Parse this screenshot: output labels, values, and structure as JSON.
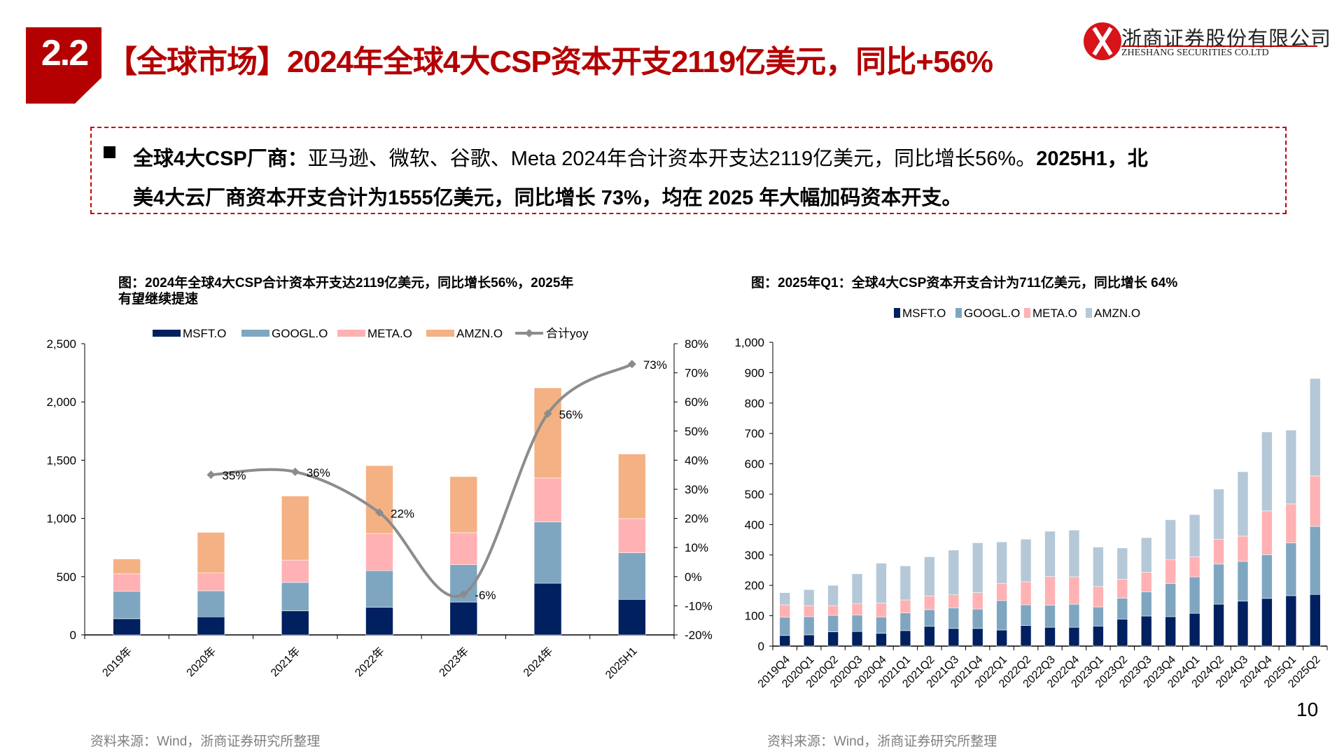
{
  "header": {
    "section_number": "2.2",
    "title": "【全球市场】2024年全球4大CSP资本开支2119亿美元，同比+56%",
    "brand_color": "#b40000"
  },
  "logo": {
    "name_cn": "浙商证券股份有限公司",
    "name_en": "ZHESHANG SECURITIES CO.LTD"
  },
  "summary": {
    "lead": "全球4大CSP厂商：",
    "text1": "亚马逊、微软、谷歌、Meta 2024年合计资本开支达2119亿美元，同比增长56%。",
    "bold1": "2025H1，北",
    "line2": "美4大云厂商资本开支合计为1555亿美元，同比增长 73%，均在 2025 年大幅加码资本开支。"
  },
  "left_chart": {
    "caption_line1": "图：2024年全球4大CSP合计资本开支达2119亿美元，同比增长56%，2025年",
    "caption_line2": "有望继续提速",
    "source": "资料来源：Wind，浙商证券研究所整理"
  },
  "right_chart": {
    "caption": "图：2025年Q1：全球4大CSP资本开支合计为711亿美元，同比增长 64%",
    "source": "资料来源：Wind，浙商证券研究所整理"
  },
  "page_number": "10",
  "chart_data": [
    {
      "type": "bar",
      "stacked": true,
      "categories": [
        "2019年",
        "2020年",
        "2021年",
        "2022年",
        "2023年",
        "2024年",
        "2025H1"
      ],
      "series": [
        {
          "name": "MSFT.O",
          "color": "#002060",
          "values": [
            139,
            155,
            206,
            238,
            282,
            444,
            305
          ]
        },
        {
          "name": "GOOGL.O",
          "color": "#7FA6C1",
          "values": [
            235,
            224,
            245,
            314,
            321,
            526,
            400
          ]
        },
        {
          "name": "META.O",
          "color": "#FFB1B3",
          "values": [
            150,
            152,
            191,
            319,
            275,
            377,
            293
          ]
        },
        {
          "name": "AMZN.O",
          "color": "#F4B183",
          "values": [
            128,
            349,
            550,
            582,
            481,
            774,
            555
          ]
        }
      ],
      "line_series": {
        "name": "合计yoy",
        "color": "#8C8C8C",
        "axis": "right",
        "values": [
          null,
          35,
          36,
          22,
          -6,
          56,
          73
        ],
        "labels": [
          "",
          "35%",
          "36%",
          "22%",
          "-6%",
          "56%",
          "73%"
        ]
      },
      "ylim": [
        0,
        2500
      ],
      "yticks": [
        "0",
        "500",
        "1,000",
        "1,500",
        "2,000",
        "2,500"
      ],
      "y2lim": [
        -20,
        80
      ],
      "y2ticks": [
        "-20%",
        "-10%",
        "0%",
        "10%",
        "20%",
        "30%",
        "40%",
        "50%",
        "60%",
        "70%",
        "80%"
      ],
      "legend": "top",
      "grid": false
    },
    {
      "type": "bar",
      "stacked": true,
      "categories": [
        "2019Q4",
        "2020Q1",
        "2020Q2",
        "2020Q3",
        "2020Q4",
        "2021Q1",
        "2021Q2",
        "2021Q3",
        "2021Q4",
        "2022Q1",
        "2022Q2",
        "2022Q3",
        "2022Q4",
        "2023Q1",
        "2023Q2",
        "2023Q3",
        "2023Q4",
        "2024Q1",
        "2024Q2",
        "2024Q3",
        "2024Q4",
        "2025Q1",
        "2025Q2"
      ],
      "series": [
        {
          "name": "MSFT.O",
          "color": "#002060",
          "values": [
            35,
            37,
            47,
            48,
            42,
            51,
            65,
            58,
            58,
            53,
            68,
            62,
            62,
            66,
            89,
            99,
            97,
            108,
            138,
            148,
            157,
            166,
            170
          ]
        },
        {
          "name": "GOOGL.O",
          "color": "#7FA6C1",
          "values": [
            60,
            60,
            54,
            54,
            54,
            58,
            55,
            68,
            64,
            97,
            68,
            73,
            76,
            63,
            69,
            80,
            109,
            120,
            132,
            131,
            144,
            174,
            224
          ]
        },
        {
          "name": "META.O",
          "color": "#FFB1B3",
          "values": [
            41,
            36,
            32,
            38,
            46,
            43,
            45,
            43,
            54,
            56,
            76,
            94,
            90,
            67,
            62,
            64,
            78,
            66,
            82,
            83,
            144,
            128,
            166
          ]
        },
        {
          "name": "AMZN.O",
          "color": "#B4C8D8",
          "values": [
            40,
            53,
            67,
            98,
            131,
            112,
            129,
            147,
            164,
            137,
            140,
            149,
            154,
            130,
            103,
            114,
            132,
            139,
            165,
            212,
            260,
            243,
            321
          ]
        }
      ],
      "ylim": [
        0,
        1000
      ],
      "yticks": [
        "0",
        "100",
        "200",
        "300",
        "400",
        "500",
        "600",
        "700",
        "800",
        "900",
        "1,000"
      ],
      "legend": "top",
      "grid": false
    }
  ]
}
